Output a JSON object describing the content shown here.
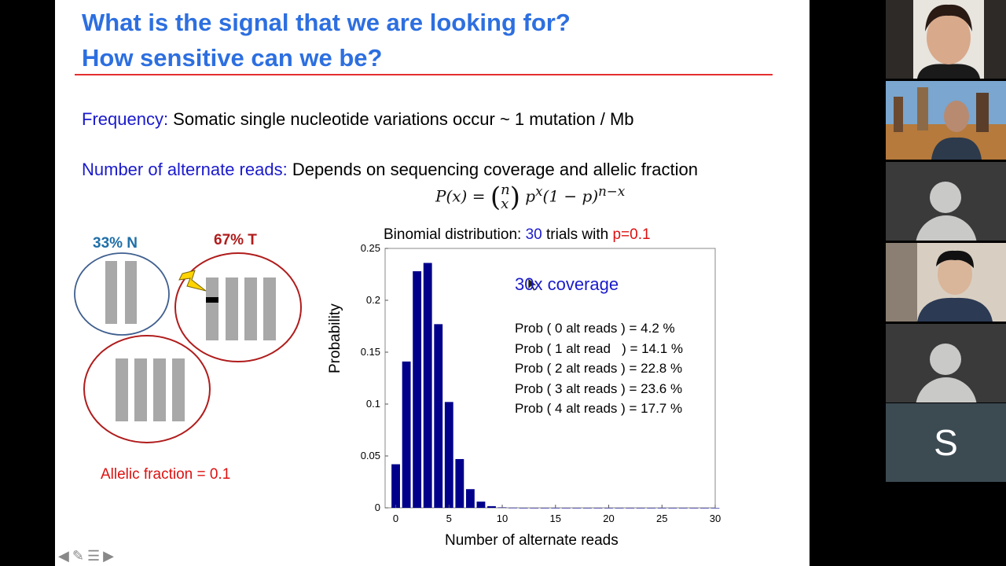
{
  "slide": {
    "title_line1": "What is the signal that we are looking for?",
    "title_line2": "How sensitive can we be?",
    "frequency_label": "Frequency:",
    "frequency_text": " Somatic single nucleotide variations occur ~ 1 mutation / Mb",
    "alt_reads_label": "Number of alternate reads:",
    "alt_reads_text": " Depends on sequencing coverage and allelic fraction",
    "normal_label": "33% N",
    "tumor_label": "67% T",
    "allelic_fraction": "Allelic fraction = 0.1",
    "chart_title_prefix": "Binomial distribution: ",
    "chart_title_trials": "30",
    "chart_title_mid": " trials with ",
    "chart_title_p": "p=0.1",
    "coverage_label": "30x coverage",
    "prob_lines": [
      "Prob ( 0 alt reads ) = 4.2 %",
      "Prob ( 1 alt read   ) = 14.1 %",
      "Prob ( 2 alt reads ) = 22.8 %",
      "Prob ( 3 alt reads ) = 23.6 %",
      "Prob ( 4 alt reads ) = 17.7 %"
    ],
    "colors": {
      "title": "#2d6fe0",
      "label_blue": "#1a1acc",
      "red": "#dd1111",
      "bar": "#00008b"
    }
  },
  "chart_data": {
    "type": "bar",
    "xlabel": "Number of alternate reads",
    "ylabel": "Probability",
    "xlim": [
      -1,
      30
    ],
    "ylim": [
      0,
      0.25
    ],
    "xticks": [
      "0",
      "5",
      "10",
      "15",
      "20",
      "25",
      "30"
    ],
    "yticks": [
      "0",
      "0.05",
      "0.1",
      "0.15",
      "0.2",
      "0.25"
    ],
    "categories": [
      0,
      1,
      2,
      3,
      4,
      5,
      6,
      7,
      8,
      9,
      10,
      11,
      12,
      13,
      14,
      15,
      16,
      17,
      18,
      19,
      20,
      21,
      22,
      23,
      24,
      25,
      26,
      27,
      28,
      29,
      30
    ],
    "values": [
      0.042,
      0.141,
      0.228,
      0.236,
      0.177,
      0.102,
      0.047,
      0.018,
      0.006,
      0.0016,
      0.0004,
      0.0001,
      0,
      0,
      0,
      0,
      0,
      0,
      0,
      0,
      0,
      0,
      0,
      0,
      0,
      0,
      0,
      0,
      0,
      0,
      0
    ]
  },
  "participants": [
    {
      "name": "",
      "type": "video"
    },
    {
      "name": "",
      "type": "video"
    },
    {
      "name": "",
      "type": "avatar"
    },
    {
      "name": "",
      "type": "video"
    },
    {
      "name": "",
      "type": "avatar"
    },
    {
      "name": "S",
      "type": "initial"
    }
  ]
}
